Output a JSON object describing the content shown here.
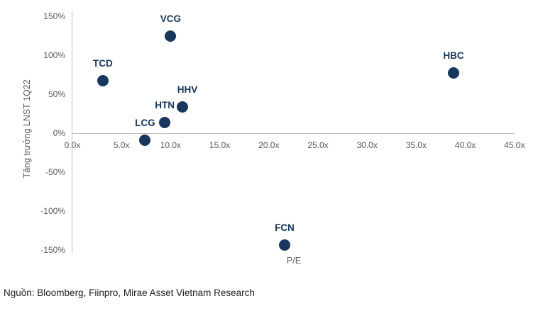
{
  "chart_data": {
    "type": "scatter",
    "title": "",
    "xlabel": "P/E",
    "ylabel": "Tăng trưởng LNST 1Q22",
    "xlim": [
      0,
      45
    ],
    "ylim": [
      -150,
      150
    ],
    "grid": false,
    "x_ticks": [
      {
        "value": 0,
        "label": "0.0x"
      },
      {
        "value": 5,
        "label": "5.0x"
      },
      {
        "value": 10,
        "label": "10.0x"
      },
      {
        "value": 15,
        "label": "15.0x"
      },
      {
        "value": 20,
        "label": "20.0x"
      },
      {
        "value": 25,
        "label": "25.0x"
      },
      {
        "value": 30,
        "label": "30.0x"
      },
      {
        "value": 35,
        "label": "35.0x"
      },
      {
        "value": 40,
        "label": "40.0x"
      },
      {
        "value": 45,
        "label": "45.0x"
      }
    ],
    "y_ticks": [
      {
        "value": 150,
        "label": "150%"
      },
      {
        "value": 100,
        "label": "100%"
      },
      {
        "value": 50,
        "label": "50%"
      },
      {
        "value": 0,
        "label": "0%"
      },
      {
        "value": -50,
        "label": "-50%"
      },
      {
        "value": -100,
        "label": "-100%"
      },
      {
        "value": -150,
        "label": "-150%"
      }
    ],
    "points": [
      {
        "label": "TCD",
        "x": 3.1,
        "y": 68,
        "label_dx": 0
      },
      {
        "label": "VCG",
        "x": 10.0,
        "y": 125,
        "label_dx": 0
      },
      {
        "label": "HHV",
        "x": 11.2,
        "y": 34,
        "label_dx": 7
      },
      {
        "label": "HTN",
        "x": 9.4,
        "y": 14,
        "label_dx": 0
      },
      {
        "label": "LCG",
        "x": 7.4,
        "y": -9,
        "label_dx": 0
      },
      {
        "label": "HBC",
        "x": 38.8,
        "y": 78,
        "label_dx": 0
      },
      {
        "label": "FCN",
        "x": 21.6,
        "y": -143,
        "label_dx": 0
      }
    ]
  },
  "colors": {
    "point": "#17375E",
    "point_label": "#17375E",
    "tick_text": "#595959",
    "axis_line": "#BFBFBF",
    "source_text": "#222222"
  },
  "source_note": "Nguồn: Bloomberg, Fiinpro, Mirae Asset Vietnam Research"
}
